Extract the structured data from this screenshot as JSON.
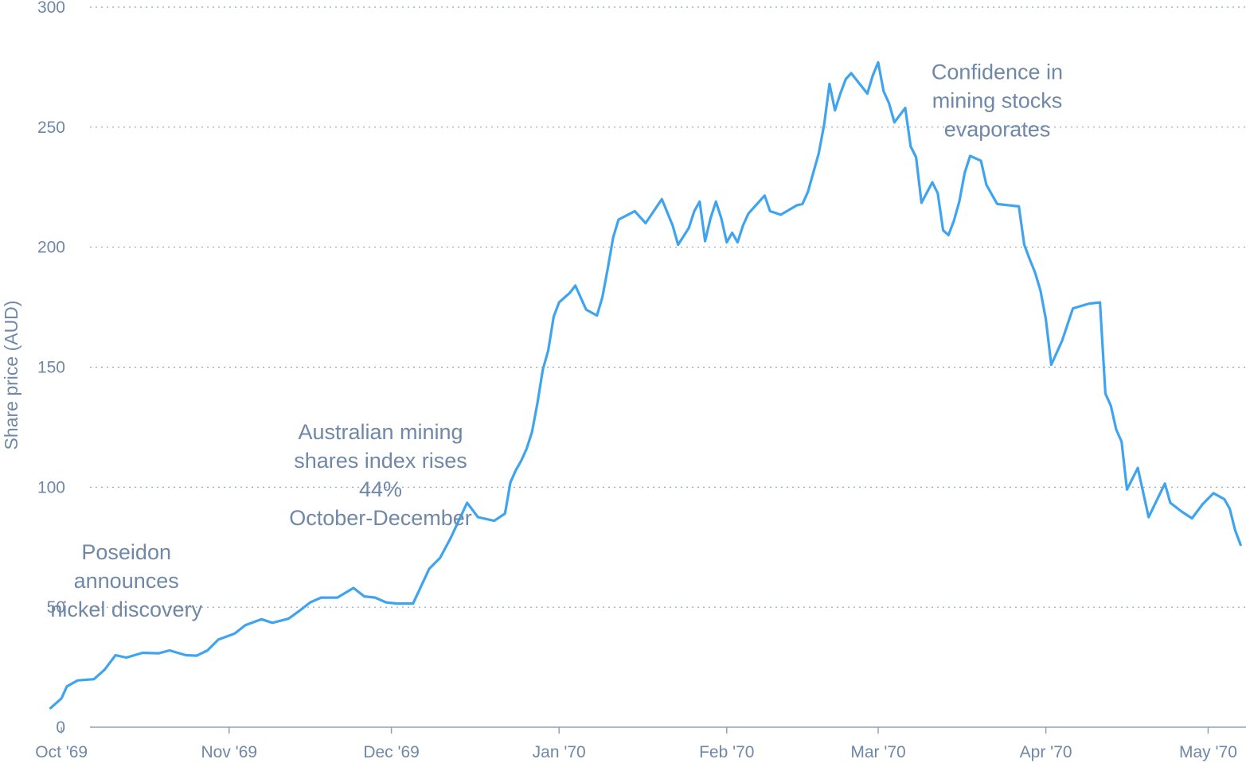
{
  "chart_data": {
    "type": "line",
    "title": "",
    "xlabel": "",
    "ylabel": "Share price (AUD)",
    "ylim": [
      0,
      300
    ],
    "y_ticks": [
      "0",
      "50",
      "100",
      "150",
      "200",
      "250",
      "300"
    ],
    "x_ticks": [
      {
        "label": "Oct '69",
        "date": "1969-10-01"
      },
      {
        "label": "Nov '69",
        "date": "1969-11-01"
      },
      {
        "label": "Dec '69",
        "date": "1969-12-01"
      },
      {
        "label": "Jan '70",
        "date": "1970-01-01"
      },
      {
        "label": "Feb '70",
        "date": "1970-02-01"
      },
      {
        "label": "Mar '70",
        "date": "1970-03-01"
      },
      {
        "label": "Apr '70",
        "date": "1970-04-01"
      },
      {
        "label": "May '70",
        "date": "1970-05-01"
      }
    ],
    "xlim": [
      "1969-09-27",
      "1970-05-08"
    ],
    "grid": true,
    "colors": {
      "line": "#3fa4f0",
      "text": "#6f88a8",
      "grid": "#8fa3b8"
    },
    "series": [
      {
        "points": [
          [
            "1969-09-29",
            8
          ],
          [
            "1969-10-01",
            12
          ],
          [
            "1969-10-02",
            17
          ],
          [
            "1969-10-04",
            19.5
          ],
          [
            "1969-10-07",
            20
          ],
          [
            "1969-10-09",
            24
          ],
          [
            "1969-10-11",
            30
          ],
          [
            "1969-10-13",
            29
          ],
          [
            "1969-10-16",
            31
          ],
          [
            "1969-10-19",
            30.8
          ],
          [
            "1969-10-21",
            32
          ],
          [
            "1969-10-24",
            30
          ],
          [
            "1969-10-26",
            29.8
          ],
          [
            "1969-10-28",
            32
          ],
          [
            "1969-10-30",
            36.5
          ],
          [
            "1969-11-02",
            39
          ],
          [
            "1969-11-04",
            42.5
          ],
          [
            "1969-11-07",
            45
          ],
          [
            "1969-11-09",
            43.5
          ],
          [
            "1969-11-12",
            45.2
          ],
          [
            "1969-11-14",
            48.5
          ],
          [
            "1969-11-16",
            52
          ],
          [
            "1969-11-18",
            54
          ],
          [
            "1969-11-21",
            54
          ],
          [
            "1969-11-24",
            58
          ],
          [
            "1969-11-26",
            54.5
          ],
          [
            "1969-11-28",
            54
          ],
          [
            "1969-11-30",
            52
          ],
          [
            "1969-12-02",
            51.5
          ],
          [
            "1969-12-05",
            51.5
          ],
          [
            "1969-12-08",
            66
          ],
          [
            "1969-12-10",
            70.5
          ],
          [
            "1969-12-12",
            79
          ],
          [
            "1969-12-15",
            93.5
          ],
          [
            "1969-12-17",
            87.5
          ],
          [
            "1969-12-20",
            86
          ],
          [
            "1969-12-22",
            89
          ],
          [
            "1969-12-23",
            102
          ],
          [
            "1969-12-24",
            107
          ],
          [
            "1969-12-25",
            111
          ],
          [
            "1969-12-26",
            116
          ],
          [
            "1969-12-27",
            123
          ],
          [
            "1969-12-28",
            135
          ],
          [
            "1969-12-29",
            149
          ],
          [
            "1969-12-30",
            157
          ],
          [
            "1969-12-31",
            171
          ],
          [
            "1970-01-01",
            177
          ],
          [
            "1970-01-03",
            181
          ],
          [
            "1970-01-04",
            184
          ],
          [
            "1970-01-06",
            174
          ],
          [
            "1970-01-08",
            171.5
          ],
          [
            "1970-01-09",
            179
          ],
          [
            "1970-01-10",
            191
          ],
          [
            "1970-01-11",
            204
          ],
          [
            "1970-01-12",
            211.5
          ],
          [
            "1970-01-15",
            215
          ],
          [
            "1970-01-17",
            210
          ],
          [
            "1970-01-20",
            220
          ],
          [
            "1970-01-22",
            209
          ],
          [
            "1970-01-23",
            201
          ],
          [
            "1970-01-25",
            208
          ],
          [
            "1970-01-26",
            215
          ],
          [
            "1970-01-27",
            219
          ],
          [
            "1970-01-28",
            202.5
          ],
          [
            "1970-01-29",
            212
          ],
          [
            "1970-01-30",
            219
          ],
          [
            "1970-01-31",
            212
          ],
          [
            "1970-02-01",
            202
          ],
          [
            "1970-02-02",
            206
          ],
          [
            "1970-02-03",
            202
          ],
          [
            "1970-02-04",
            209
          ],
          [
            "1970-02-05",
            214
          ],
          [
            "1970-02-08",
            221.5
          ],
          [
            "1970-02-09",
            215
          ],
          [
            "1970-02-11",
            213.5
          ],
          [
            "1970-02-14",
            217.5
          ],
          [
            "1970-02-15",
            218
          ],
          [
            "1970-02-16",
            223
          ],
          [
            "1970-02-18",
            239
          ],
          [
            "1970-02-19",
            251
          ],
          [
            "1970-02-20",
            268
          ],
          [
            "1970-02-21",
            257
          ],
          [
            "1970-02-22",
            264
          ],
          [
            "1970-02-23",
            270
          ],
          [
            "1970-02-24",
            272.5
          ],
          [
            "1970-02-27",
            264
          ],
          [
            "1970-02-28",
            271.5
          ],
          [
            "1970-03-01",
            277
          ],
          [
            "1970-03-02",
            265
          ],
          [
            "1970-03-03",
            260
          ],
          [
            "1970-03-04",
            252
          ],
          [
            "1970-03-06",
            258
          ],
          [
            "1970-03-07",
            242
          ],
          [
            "1970-03-08",
            237.5
          ],
          [
            "1970-03-09",
            218.5
          ],
          [
            "1970-03-11",
            227
          ],
          [
            "1970-03-12",
            222.5
          ],
          [
            "1970-03-13",
            207
          ],
          [
            "1970-03-14",
            205
          ],
          [
            "1970-03-15",
            211
          ],
          [
            "1970-03-16",
            219
          ],
          [
            "1970-03-17",
            231
          ],
          [
            "1970-03-18",
            238
          ],
          [
            "1970-03-20",
            236
          ],
          [
            "1970-03-21",
            226
          ],
          [
            "1970-03-22",
            222
          ],
          [
            "1970-03-23",
            218
          ],
          [
            "1970-03-27",
            217
          ],
          [
            "1970-03-28",
            201
          ],
          [
            "1970-03-29",
            195
          ],
          [
            "1970-03-30",
            189.5
          ],
          [
            "1970-03-31",
            182
          ],
          [
            "1970-04-01",
            170
          ],
          [
            "1970-04-02",
            151
          ],
          [
            "1970-04-04",
            161
          ],
          [
            "1970-04-06",
            174.5
          ],
          [
            "1970-04-09",
            176.5
          ],
          [
            "1970-04-11",
            177
          ],
          [
            "1970-04-12",
            139
          ],
          [
            "1970-04-13",
            134
          ],
          [
            "1970-04-14",
            124
          ],
          [
            "1970-04-15",
            119
          ],
          [
            "1970-04-16",
            99
          ],
          [
            "1970-04-18",
            108
          ],
          [
            "1970-04-20",
            87.5
          ],
          [
            "1970-04-23",
            101.5
          ],
          [
            "1970-04-24",
            93.5
          ],
          [
            "1970-04-26",
            90
          ],
          [
            "1970-04-28",
            87
          ],
          [
            "1970-04-30",
            93
          ],
          [
            "1970-05-02",
            97.5
          ],
          [
            "1970-05-04",
            95
          ],
          [
            "1970-05-05",
            91
          ],
          [
            "1970-05-06",
            82
          ],
          [
            "1970-05-07",
            76
          ]
        ]
      }
    ],
    "annotations": [
      {
        "lines": [
          "Poseidon",
          "announces",
          "nickel discovery"
        ],
        "date": "1969-10-13",
        "y": 70
      },
      {
        "lines": [
          "Australian mining",
          "shares index rises",
          "44%",
          "October-December"
        ],
        "date": "1969-11-29",
        "y": 120
      },
      {
        "lines": [
          "Confidence in",
          "mining stocks",
          "evaporates"
        ],
        "date": "1970-03-23",
        "y": 270
      }
    ]
  }
}
